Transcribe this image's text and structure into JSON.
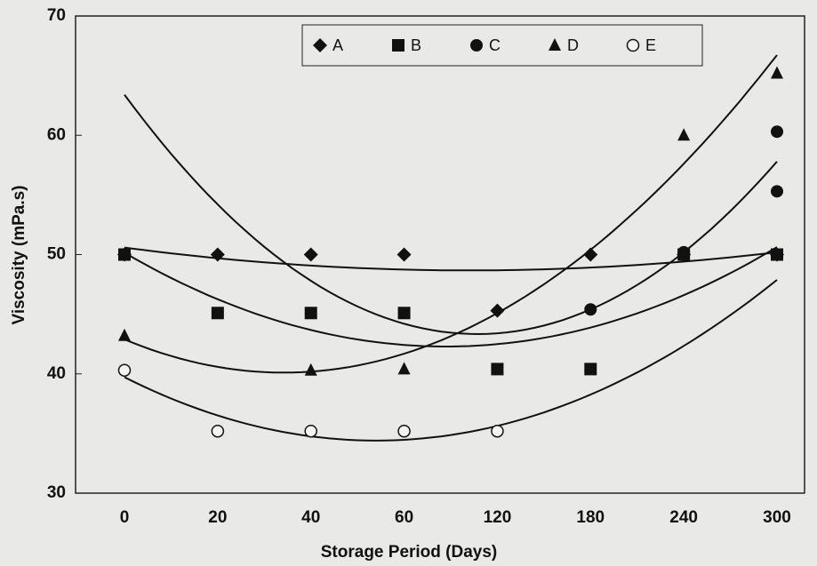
{
  "chart_data": {
    "type": "scatter",
    "xlabel": "Storage Period (Days)",
    "ylabel": "Viscosity (mPa.s)",
    "categories": [
      "0",
      "20",
      "40",
      "60",
      "120",
      "180",
      "240",
      "300"
    ],
    "ylim": [
      30,
      70
    ],
    "yticks": [
      30,
      40,
      50,
      60,
      70
    ],
    "trendline": true,
    "series": [
      {
        "name": "A",
        "marker": "diamond",
        "x": [
          "0",
          "20",
          "40",
          "60",
          "120",
          "180",
          "240",
          "300"
        ],
        "values": [
          50,
          50,
          50,
          50,
          45.3,
          50,
          50,
          50
        ]
      },
      {
        "name": "B",
        "marker": "square",
        "x": [
          "0",
          "20",
          "40",
          "60",
          "120",
          "180",
          "240",
          "300"
        ],
        "values": [
          50,
          45.1,
          45.1,
          45.1,
          40.4,
          40.4,
          50,
          50
        ]
      },
      {
        "name": "C",
        "marker": "circle",
        "x": [
          "180",
          "240",
          "300",
          "300"
        ],
        "values": [
          45.4,
          50.2,
          60.3,
          55.3
        ]
      },
      {
        "name": "D",
        "marker": "triangle",
        "x": [
          "0",
          "40",
          "60",
          "240",
          "300"
        ],
        "values": [
          43.2,
          40.3,
          40.4,
          60,
          65.2
        ]
      },
      {
        "name": "E",
        "marker": "open-circle",
        "x": [
          "0",
          "20",
          "40",
          "60",
          "120"
        ],
        "values": [
          40.3,
          35.2,
          35.2,
          35.2,
          35.2
        ]
      }
    ]
  }
}
